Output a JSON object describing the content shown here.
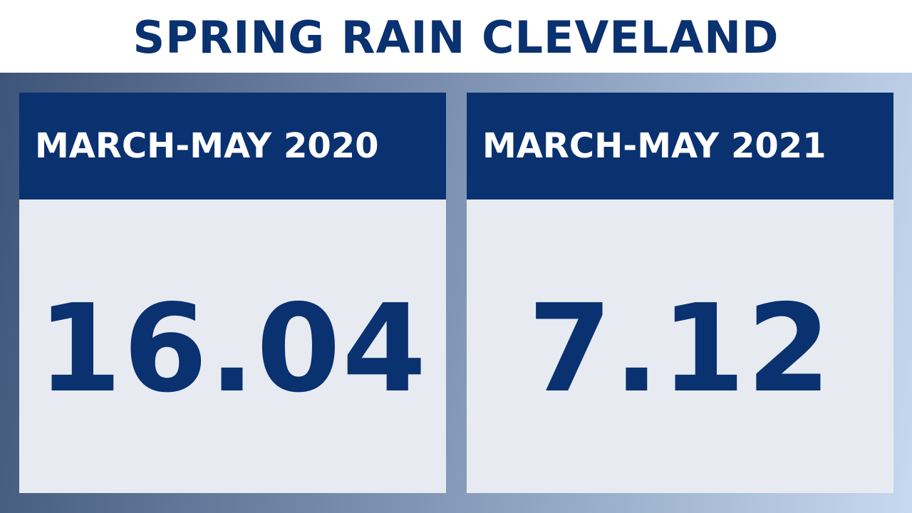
{
  "title": "SPRING RAIN CLEVELAND",
  "cards": [
    {
      "label": "MARCH-MAY 2020",
      "value": "16.04"
    },
    {
      "label": "MARCH-MAY 2021",
      "value": "7.12"
    }
  ],
  "colors": {
    "navy": "#0a3170",
    "card_body": "#e7ebf1",
    "backdrop_start": "#3e5478",
    "backdrop_end": "#c6d9ef"
  }
}
